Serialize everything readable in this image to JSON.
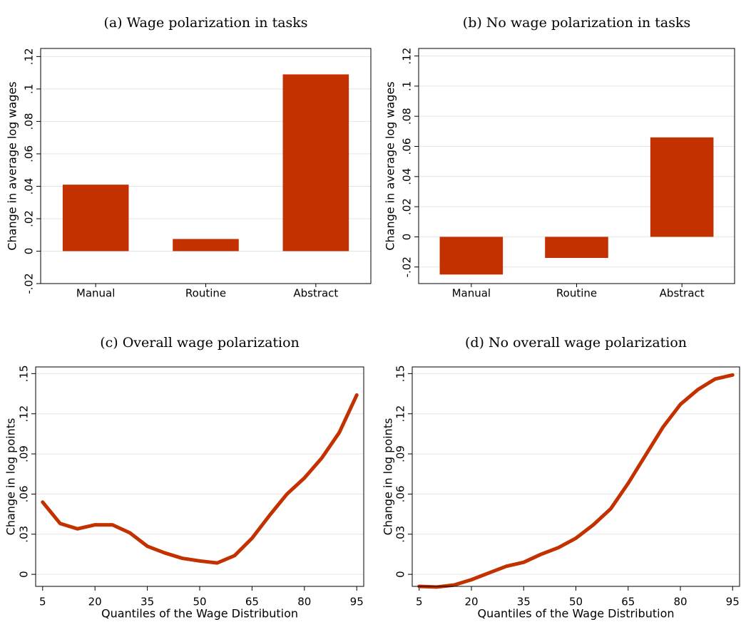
{
  "chart_data": [
    {
      "type": "bar",
      "title": "(a) Wage polarization in tasks",
      "ylabel": "Change in average log wages",
      "categories": [
        "Manual",
        "Routine",
        "Abstract"
      ],
      "values": [
        0.041,
        0.0075,
        0.109
      ],
      "color": "#c43100",
      "ylim": [
        -0.02,
        0.125
      ],
      "yticks": [
        {
          "value": -0.02,
          "label": "-.02"
        },
        0,
        {
          "value": 0.02,
          "label": ".02"
        },
        {
          "value": 0.04,
          "label": ".04"
        },
        {
          "value": 0.06,
          "label": ".06"
        },
        {
          "value": 0.08,
          "label": ".08"
        },
        {
          "value": 0.1,
          "label": ".1"
        },
        {
          "value": 0.12,
          "label": ".12"
        }
      ],
      "grid": true
    },
    {
      "type": "bar",
      "title": "(b) No wage polarization in tasks",
      "ylabel": "Change in average log wages",
      "categories": [
        "Manual",
        "Routine",
        "Abstract"
      ],
      "values": [
        -0.025,
        -0.014,
        0.066
      ],
      "color": "#c43100",
      "ylim": [
        -0.031,
        0.125
      ],
      "yticks": [
        {
          "value": -0.02,
          "label": "-.02"
        },
        0,
        {
          "value": 0.02,
          "label": ".02"
        },
        {
          "value": 0.04,
          "label": ".04"
        },
        {
          "value": 0.06,
          "label": ".06"
        },
        {
          "value": 0.08,
          "label": ".08"
        },
        {
          "value": 0.1,
          "label": ".1"
        },
        {
          "value": 0.12,
          "label": ".12"
        }
      ],
      "grid": true
    },
    {
      "type": "line",
      "title": "(c) Overall wage polarization",
      "ylabel": "Change in log points",
      "xlabel": "Quantiles of the Wage Distribution",
      "x": [
        5,
        10,
        15,
        20,
        25,
        30,
        35,
        40,
        45,
        50,
        55,
        60,
        65,
        70,
        75,
        80,
        85,
        90,
        95
      ],
      "values": [
        0.054,
        0.038,
        0.034,
        0.037,
        0.037,
        0.031,
        0.021,
        0.016,
        0.012,
        0.01,
        0.0085,
        0.014,
        0.027,
        0.044,
        0.06,
        0.072,
        0.087,
        0.106,
        0.134
      ],
      "color": "#c43100",
      "xlim": [
        3,
        97
      ],
      "xticks": [
        5,
        20,
        35,
        50,
        65,
        80,
        95
      ],
      "ylim": [
        -0.009,
        0.155
      ],
      "yticks": [
        0,
        {
          "value": 0.03,
          "label": ".03"
        },
        {
          "value": 0.06,
          "label": ".06"
        },
        {
          "value": 0.09,
          "label": ".09"
        },
        {
          "value": 0.12,
          "label": ".12"
        },
        {
          "value": 0.15,
          "label": ".15"
        }
      ],
      "grid": true
    },
    {
      "type": "line",
      "title": "(d) No overall wage polarization",
      "ylabel": "Change in log points",
      "xlabel": "Quantiles of the Wage Distribution",
      "x": [
        5,
        10,
        15,
        20,
        25,
        30,
        35,
        40,
        45,
        50,
        55,
        60,
        65,
        70,
        75,
        80,
        85,
        90,
        95
      ],
      "values": [
        -0.009,
        -0.0095,
        -0.008,
        -0.004,
        0.001,
        0.006,
        0.009,
        0.015,
        0.02,
        0.027,
        0.037,
        0.049,
        0.068,
        0.089,
        0.11,
        0.127,
        0.138,
        0.146,
        0.149
      ],
      "color": "#c43100",
      "xlim": [
        3,
        97
      ],
      "xticks": [
        5,
        20,
        35,
        50,
        65,
        80,
        95
      ],
      "ylim": [
        -0.009,
        0.155
      ],
      "yticks": [
        0,
        {
          "value": 0.03,
          "label": ".03"
        },
        {
          "value": 0.06,
          "label": ".06"
        },
        {
          "value": 0.09,
          "label": ".09"
        },
        {
          "value": 0.12,
          "label": ".12"
        },
        {
          "value": 0.15,
          "label": ".15"
        }
      ],
      "grid": true
    }
  ]
}
